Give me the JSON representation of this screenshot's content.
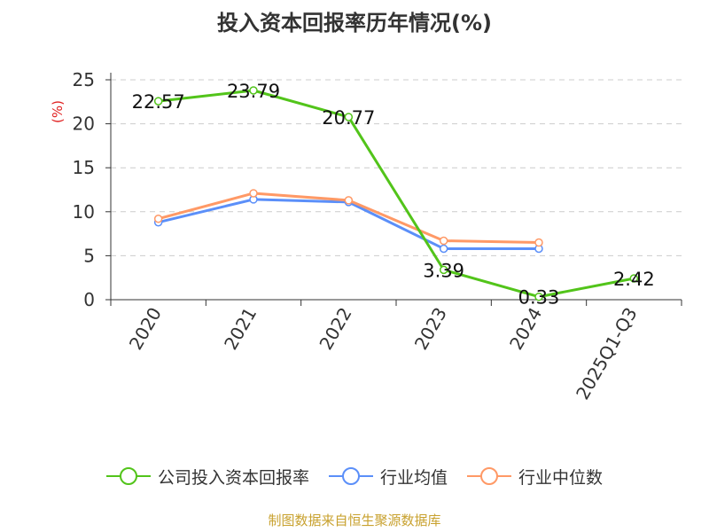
{
  "chart_data": {
    "type": "line",
    "title": "投入资本回报率历年情况(%)",
    "ylabel": "(%)",
    "categories": [
      "2020",
      "2021",
      "2022",
      "2023",
      "2024",
      "2025Q1-Q3"
    ],
    "ylim": [
      0,
      25
    ],
    "yticks": [
      0,
      5,
      10,
      15,
      20,
      25
    ],
    "grid": true,
    "legend_position": "bottom",
    "series": [
      {
        "name": "公司投入资本回报率",
        "color": "#52c41a",
        "values": [
          22.57,
          23.79,
          20.77,
          3.39,
          0.33,
          2.42
        ],
        "labels": [
          "22.57",
          "23.79",
          "20.77",
          "3.39",
          "0.33",
          "2.42"
        ]
      },
      {
        "name": "行业均值",
        "color": "#5b8ff9",
        "values": [
          8.8,
          11.4,
          11.1,
          5.8,
          5.8,
          null
        ]
      },
      {
        "name": "行业中位数",
        "color": "#ff9966",
        "values": [
          9.2,
          12.1,
          11.3,
          6.7,
          6.5,
          null
        ]
      }
    ]
  },
  "source": "制图数据来自恒生聚源数据库"
}
